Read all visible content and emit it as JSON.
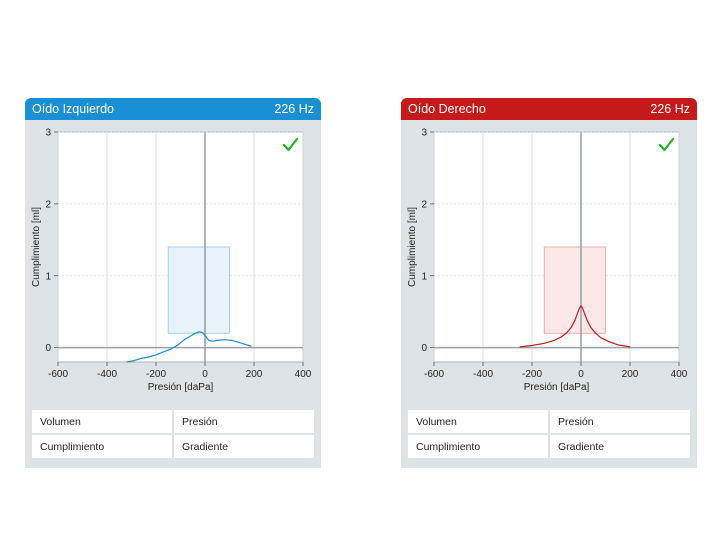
{
  "colors": {
    "left_accent": "#1a8fd6",
    "right_accent": "#c61a1a",
    "left_region_fill": "#e9f3fc",
    "left_region_stroke": "#9ccbed",
    "right_region_fill": "#fbe9e9",
    "right_region_stroke": "#e9a6a6",
    "check": "#1fb41f",
    "panel_bg": "#dde3e7"
  },
  "icons": {
    "check": "check-icon"
  },
  "panels": [
    {
      "id": "left",
      "title": "Oído Izquierdo",
      "frequency": "226 Hz",
      "table": {
        "row1": [
          "Volumen",
          "Presión"
        ],
        "row2": [
          "Cumplimiento",
          "Gradiente"
        ]
      }
    },
    {
      "id": "right",
      "title": "Oído Derecho",
      "frequency": "226 Hz",
      "table": {
        "row1": [
          "Volumen",
          "Presión"
        ],
        "row2": [
          "Cumplimiento",
          "Gradiente"
        ]
      }
    }
  ],
  "chart_data": [
    {
      "type": "line",
      "title": "",
      "xlabel": "Presión [daPa]",
      "ylabel": "Cumplimiento [ml]",
      "xlim": [
        -600,
        400
      ],
      "ylim": [
        -0.2,
        3
      ],
      "xticks": [
        -600,
        -400,
        -200,
        0,
        200,
        400
      ],
      "yticks": [
        0,
        1,
        2,
        3
      ],
      "grid": true,
      "normal_region": {
        "x": [
          -150,
          100
        ],
        "y": [
          0.2,
          1.4
        ]
      },
      "series": [
        {
          "x": [
            -320,
            -290,
            -260,
            -230,
            -200,
            -170,
            -140,
            -110,
            -80,
            -60,
            -40,
            -25,
            -10,
            0,
            15,
            30,
            50,
            80,
            110,
            140,
            170,
            190
          ],
          "y": [
            -0.2,
            -0.18,
            -0.15,
            -0.13,
            -0.1,
            -0.06,
            -0.02,
            0.04,
            0.12,
            0.16,
            0.2,
            0.22,
            0.21,
            0.17,
            0.1,
            0.09,
            0.1,
            0.11,
            0.1,
            0.07,
            0.04,
            0.02
          ]
        }
      ]
    },
    {
      "type": "line",
      "title": "",
      "xlabel": "Presión [daPa]",
      "ylabel": "Cumplimiento [ml]",
      "xlim": [
        -600,
        400
      ],
      "ylim": [
        -0.2,
        3
      ],
      "xticks": [
        -600,
        -400,
        -200,
        0,
        200,
        400
      ],
      "yticks": [
        0,
        1,
        2,
        3
      ],
      "grid": true,
      "normal_region": {
        "x": [
          -150,
          100
        ],
        "y": [
          0.2,
          1.4
        ]
      },
      "series": [
        {
          "x": [
            -250,
            -200,
            -150,
            -110,
            -80,
            -60,
            -40,
            -25,
            -15,
            -5,
            0,
            5,
            15,
            25,
            40,
            60,
            80,
            110,
            150,
            200
          ],
          "y": [
            0.01,
            0.03,
            0.06,
            0.1,
            0.15,
            0.2,
            0.28,
            0.38,
            0.47,
            0.56,
            0.58,
            0.56,
            0.47,
            0.38,
            0.28,
            0.2,
            0.14,
            0.09,
            0.04,
            0.01
          ]
        }
      ]
    }
  ]
}
